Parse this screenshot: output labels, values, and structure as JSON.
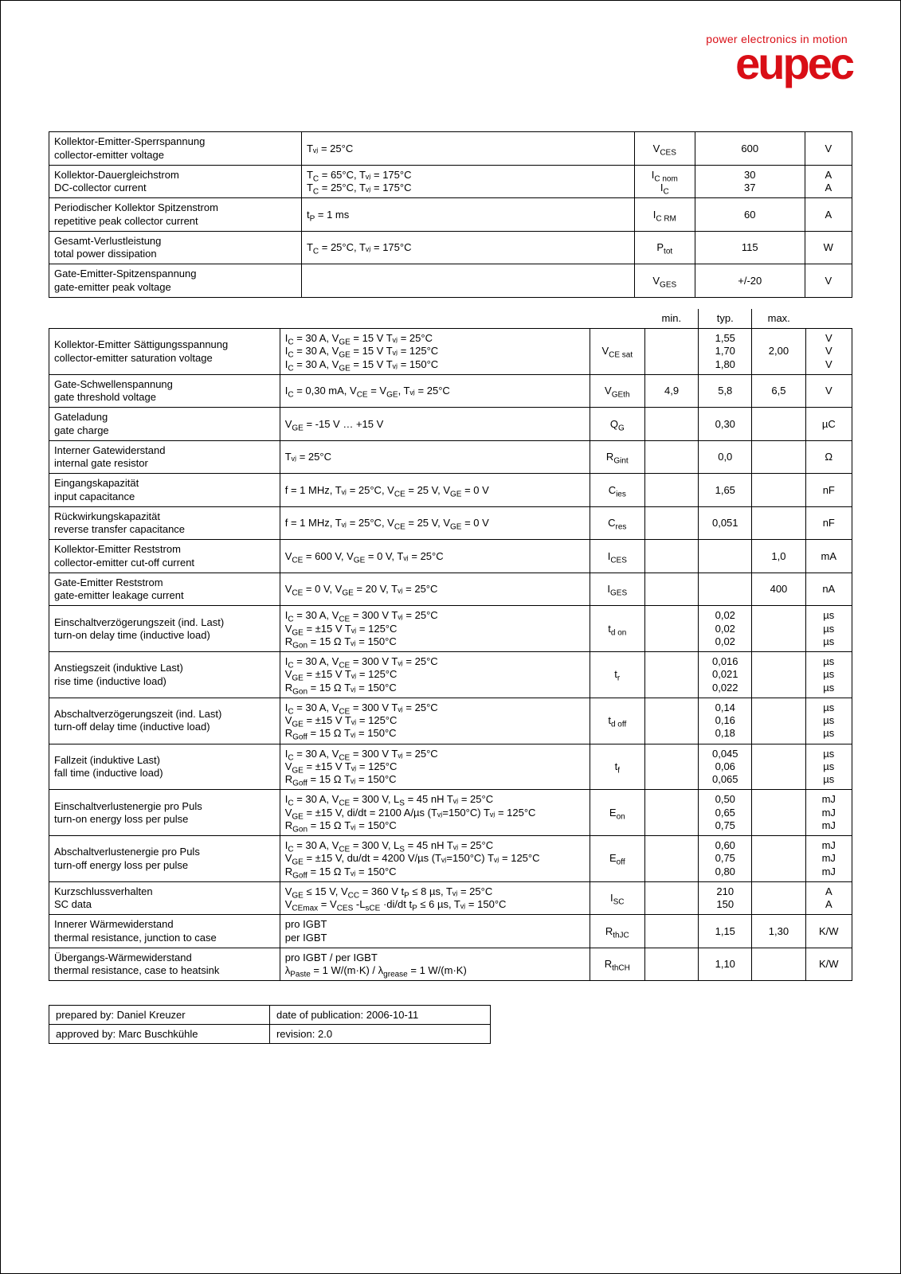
{
  "logo": {
    "tagline": "power electronics in motion",
    "brand": "eupec",
    "color": "#d90e16"
  },
  "table1": {
    "rows": [
      {
        "param_de": "Kollektor-Emitter-Sperrspannung",
        "param_en": "collector-emitter voltage",
        "cond": "Tᵥⱼ = 25°C",
        "symbol": "V_CES",
        "value": "600",
        "unit": "V"
      },
      {
        "param_de": "Kollektor-Dauergleichstrom",
        "param_en": "DC-collector current",
        "cond": "T_C = 65°C, Tᵥⱼ = 175°C\nT_C = 25°C, Tᵥⱼ = 175°C",
        "symbol": "I_C nom\nI_C",
        "value": "30\n37",
        "unit": "A\nA"
      },
      {
        "param_de": "Periodischer Kollektor Spitzenstrom",
        "param_en": "repetitive peak collector current",
        "cond": "t_P = 1 ms",
        "symbol": "I_C RM",
        "value": "60",
        "unit": "A"
      },
      {
        "param_de": "Gesamt-Verlustleistung",
        "param_en": "total power dissipation",
        "cond": "T_C = 25°C, Tᵥⱼ = 175°C",
        "symbol": "P_tot",
        "value": "115",
        "unit": "W"
      },
      {
        "param_de": "Gate-Emitter-Spitzenspannung",
        "param_en": "gate-emitter peak voltage",
        "cond": "",
        "symbol": "V_GES",
        "value": "+/-20",
        "unit": "V"
      }
    ]
  },
  "table2": {
    "header": {
      "min": "min.",
      "typ": "typ.",
      "max": "max."
    },
    "rows": [
      {
        "param_de": "Kollektor-Emitter Sättigungsspannung",
        "param_en": "collector-emitter saturation voltage",
        "cond": "I_C = 30 A, V_GE = 15 V                 Tᵥⱼ = 25°C\nI_C = 30 A, V_GE = 15 V                 Tᵥⱼ = 125°C\nI_C = 30 A, V_GE = 15 V                 Tᵥⱼ = 150°C",
        "symbol": "V_CE sat",
        "min": "",
        "typ": "1,55\n1,70\n1,80",
        "max": "2,00",
        "unit": "V\nV\nV"
      },
      {
        "param_de": "Gate-Schwellenspannung",
        "param_en": "gate threshold voltage",
        "cond": "I_C = 0,30 mA, V_CE = V_GE, Tᵥⱼ = 25°C",
        "symbol": "V_GEth",
        "min": "4,9",
        "typ": "5,8",
        "max": "6,5",
        "unit": "V"
      },
      {
        "param_de": "Gateladung",
        "param_en": "gate charge",
        "cond": "V_GE = -15 V … +15 V",
        "symbol": "Q_G",
        "min": "",
        "typ": "0,30",
        "max": "",
        "unit": "µC"
      },
      {
        "param_de": "Interner Gatewiderstand",
        "param_en": "internal gate resistor",
        "cond": "Tᵥⱼ = 25°C",
        "symbol": "R_Gint",
        "min": "",
        "typ": "0,0",
        "max": "",
        "unit": "Ω"
      },
      {
        "param_de": "Eingangskapazität",
        "param_en": "input capacitance",
        "cond": "f = 1 MHz, Tᵥⱼ = 25°C, V_CE = 25 V, V_GE = 0 V",
        "symbol": "C_ies",
        "min": "",
        "typ": "1,65",
        "max": "",
        "unit": "nF"
      },
      {
        "param_de": "Rückwirkungskapazität",
        "param_en": "reverse transfer capacitance",
        "cond": "f = 1 MHz, Tᵥⱼ = 25°C, V_CE = 25 V, V_GE = 0 V",
        "symbol": "C_res",
        "min": "",
        "typ": "0,051",
        "max": "",
        "unit": "nF"
      },
      {
        "param_de": "Kollektor-Emitter Reststrom",
        "param_en": "collector-emitter cut-off current",
        "cond": "V_CE = 600 V, V_GE = 0 V, Tᵥⱼ = 25°C",
        "symbol": "I_CES",
        "min": "",
        "typ": "",
        "max": "1,0",
        "unit": "mA"
      },
      {
        "param_de": "Gate-Emitter Reststrom",
        "param_en": "gate-emitter leakage current",
        "cond": "V_CE = 0 V, V_GE = 20 V, Tᵥⱼ = 25°C",
        "symbol": "I_GES",
        "min": "",
        "typ": "",
        "max": "400",
        "unit": "nA"
      },
      {
        "param_de": "Einschaltverzögerungszeit (ind. Last)",
        "param_en": "turn-on delay time (inductive load)",
        "cond": "I_C = 30 A, V_CE = 300 V                 Tᵥⱼ = 25°C\nV_GE = ±15 V                                Tᵥⱼ = 125°C\nR_Gon = 15 Ω                                Tᵥⱼ = 150°C",
        "symbol": "t_d on",
        "min": "",
        "typ": "0,02\n0,02\n0,02",
        "max": "",
        "unit": "µs\nµs\nµs"
      },
      {
        "param_de": "Anstiegszeit (induktive Last)",
        "param_en": "rise time (inductive load)",
        "cond": "I_C = 30 A, V_CE = 300 V                 Tᵥⱼ = 25°C\nV_GE = ±15 V                                Tᵥⱼ = 125°C\nR_Gon = 15 Ω                                Tᵥⱼ = 150°C",
        "symbol": "t_r",
        "min": "",
        "typ": "0,016\n0,021\n0,022",
        "max": "",
        "unit": "µs\nµs\nµs"
      },
      {
        "param_de": "Abschaltverzögerungszeit (ind. Last)",
        "param_en": "turn-off delay time (inductive load)",
        "cond": "I_C = 30 A, V_CE = 300 V                 Tᵥⱼ = 25°C\nV_GE = ±15 V                                Tᵥⱼ = 125°C\nR_Goff = 15 Ω                                Tᵥⱼ = 150°C",
        "symbol": "t_d off",
        "min": "",
        "typ": "0,14\n0,16\n0,18",
        "max": "",
        "unit": "µs\nµs\nµs"
      },
      {
        "param_de": "Fallzeit (induktive Last)",
        "param_en": "fall time (inductive load)",
        "cond": "I_C = 30 A, V_CE = 300 V                 Tᵥⱼ = 25°C\nV_GE = ±15 V                                Tᵥⱼ = 125°C\nR_Goff = 15 Ω                                Tᵥⱼ = 150°C",
        "symbol": "t_f",
        "min": "",
        "typ": "0,045\n0,06\n0,065",
        "max": "",
        "unit": "µs\nµs\nµs"
      },
      {
        "param_de": "Einschaltverlustenergie pro Puls",
        "param_en": "turn-on energy loss per pulse",
        "cond": "I_C = 30 A, V_CE = 300 V, L_S = 45 nH     Tᵥⱼ = 25°C\nV_GE = ±15 V, di/dt = 2100 A/µs (Tᵥⱼ=150°C)   Tᵥⱼ = 125°C\nR_Gon = 15 Ω                                Tᵥⱼ = 150°C",
        "symbol": "E_on",
        "min": "",
        "typ": "0,50\n0,65\n0,75",
        "max": "",
        "unit": "mJ\nmJ\nmJ"
      },
      {
        "param_de": "Abschaltverlustenergie pro Puls",
        "param_en": "turn-off energy loss per pulse",
        "cond": "I_C = 30 A, V_CE = 300 V, L_S = 45 nH     Tᵥⱼ = 25°C\nV_GE = ±15 V, du/dt = 4200 V/µs (Tᵥⱼ=150°C)   Tᵥⱼ = 125°C\nR_Goff = 15 Ω                                Tᵥⱼ = 150°C",
        "symbol": "E_off",
        "min": "",
        "typ": "0,60\n0,75\n0,80",
        "max": "",
        "unit": "mJ\nmJ\nmJ"
      },
      {
        "param_de": "Kurzschlussverhalten",
        "param_en": "SC data",
        "cond": "V_GE ≤ 15 V, V_CC = 360 V            t_P ≤ 8 µs, Tᵥⱼ = 25°C\nV_CEmax = V_CES -L_sCE ·di/dt          t_P ≤ 6 µs, Tᵥⱼ = 150°C",
        "symbol": "I_SC",
        "min": "",
        "typ": "210\n150",
        "max": "",
        "unit": "A\nA"
      },
      {
        "param_de": "Innerer Wärmewiderstand",
        "param_en": "thermal resistance, junction to case",
        "cond": "pro IGBT\nper IGBT",
        "symbol": "R_thJC",
        "min": "",
        "typ": "1,15",
        "max": "1,30",
        "unit": "K/W"
      },
      {
        "param_de": "Übergangs-Wärmewiderstand",
        "param_en": "thermal resistance, case to heatsink",
        "cond": "pro IGBT / per IGBT\nλ_Paste = 1 W/(m·K)   /    λ_grease = 1 W/(m·K)",
        "symbol": "R_thCH",
        "min": "",
        "typ": "1,10",
        "max": "",
        "unit": "K/W"
      }
    ]
  },
  "footer": {
    "prepared_label": "prepared by:",
    "prepared_name": "Daniel Kreuzer",
    "date_label": "date of publication:",
    "date_value": "2006-10-11",
    "approved_label": "approved by:",
    "approved_name": "Marc Buschkühle",
    "revision_label": "revision:",
    "revision_value": "2.0"
  }
}
